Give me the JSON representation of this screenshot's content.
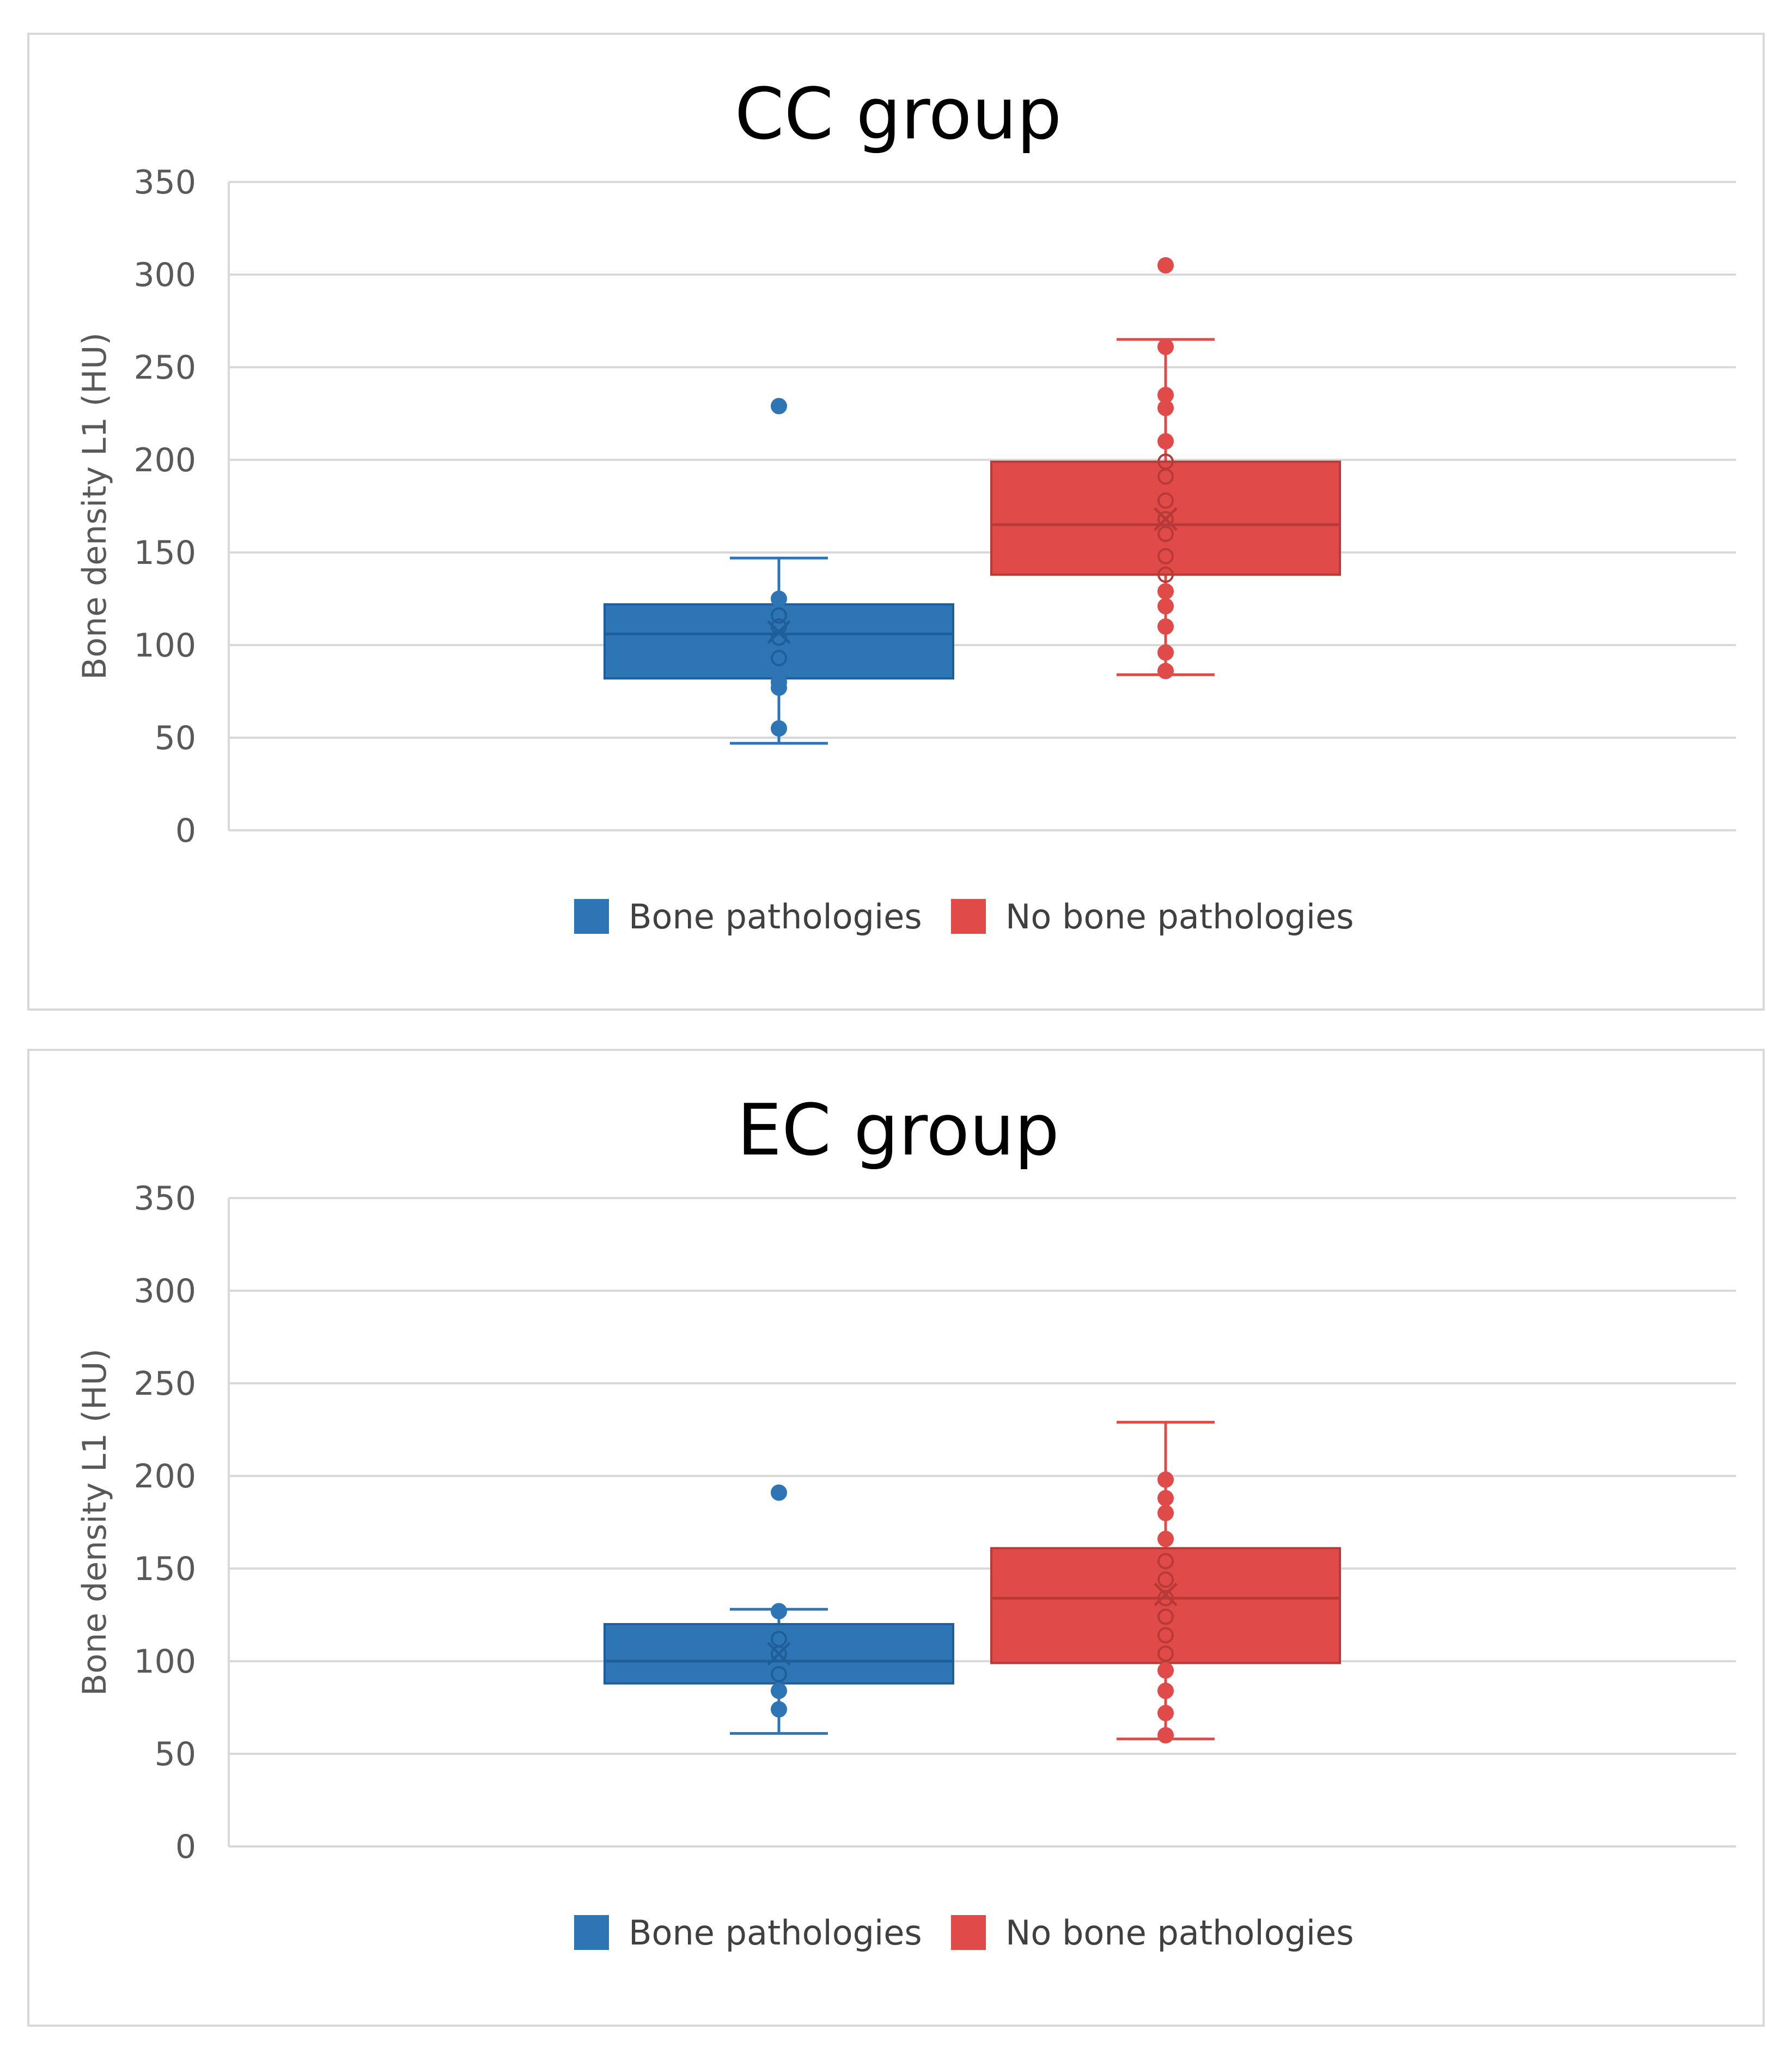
{
  "chart_data": [
    {
      "type": "box",
      "title": "CC group",
      "ylabel": "Bone density L1 (HU)",
      "ylim": [
        0,
        350
      ],
      "yticks": [
        0,
        50,
        100,
        150,
        200,
        250,
        300,
        350
      ],
      "grid": true,
      "legend_position": "bottom",
      "series": [
        {
          "name": "Bone pathologies",
          "color": "#2e75b6",
          "min": 47,
          "q1": 82,
          "median": 106,
          "q3": 122,
          "max": 147,
          "mean": 107,
          "points": [
            229,
            125,
            116,
            93,
            80,
            77,
            55,
            110,
            104
          ],
          "outliers": [
            229
          ]
        },
        {
          "name": "No bone pathologies",
          "color": "#e04a48",
          "min": 84,
          "q1": 138,
          "median": 165,
          "q3": 199,
          "max": 265,
          "mean": 168,
          "points": [
            305,
            261,
            235,
            228,
            210,
            199,
            191,
            178,
            168,
            160,
            148,
            138,
            129,
            121,
            110,
            96,
            86
          ],
          "outliers": [
            305
          ]
        }
      ]
    },
    {
      "type": "box",
      "title": "EC group",
      "ylabel": "Bone density L1 (HU)",
      "ylim": [
        0,
        350
      ],
      "yticks": [
        0,
        50,
        100,
        150,
        200,
        250,
        300,
        350
      ],
      "grid": true,
      "legend_position": "bottom",
      "series": [
        {
          "name": "Bone pathologies",
          "color": "#2e75b6",
          "min": 61,
          "q1": 88,
          "median": 100,
          "q3": 120,
          "max": 128,
          "mean": 104,
          "points": [
            191,
            127,
            112,
            104,
            93,
            84,
            74
          ],
          "outliers": [
            191
          ]
        },
        {
          "name": "No bone pathologies",
          "color": "#e04a48",
          "min": 58,
          "q1": 99,
          "median": 134,
          "q3": 161,
          "max": 229,
          "mean": 136,
          "points": [
            198,
            188,
            180,
            166,
            154,
            144,
            134,
            124,
            114,
            104,
            95,
            84,
            72,
            60
          ],
          "outliers": []
        }
      ]
    }
  ]
}
